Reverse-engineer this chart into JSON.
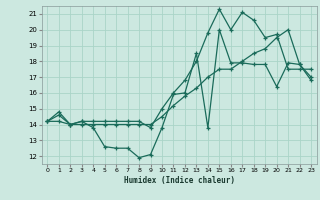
{
  "xlabel": "Humidex (Indice chaleur)",
  "bg_color": "#cce8e0",
  "grid_color": "#aad4c8",
  "line_color": "#1a6b5a",
  "xlim": [
    -0.5,
    23.5
  ],
  "ylim": [
    11.5,
    21.5
  ],
  "xticks": [
    0,
    1,
    2,
    3,
    4,
    5,
    6,
    7,
    8,
    9,
    10,
    11,
    12,
    13,
    14,
    15,
    16,
    17,
    18,
    19,
    20,
    21,
    22,
    23
  ],
  "yticks": [
    12,
    13,
    14,
    15,
    16,
    17,
    18,
    19,
    20,
    21
  ],
  "line1_x": [
    0,
    1,
    2,
    3,
    4,
    5,
    6,
    7,
    8,
    9,
    10,
    11,
    12,
    13,
    14,
    15,
    16,
    17,
    18,
    19,
    20,
    21,
    22,
    23
  ],
  "line1_y": [
    14.2,
    14.8,
    14.0,
    14.2,
    13.8,
    12.6,
    12.5,
    12.5,
    11.9,
    12.1,
    13.8,
    15.9,
    16.0,
    18.5,
    13.8,
    20.0,
    17.9,
    17.9,
    17.8,
    17.8,
    16.4,
    17.9,
    17.8,
    16.8
  ],
  "line2_x": [
    0,
    1,
    2,
    3,
    4,
    5,
    6,
    7,
    8,
    9,
    10,
    11,
    12,
    13,
    14,
    15,
    16,
    17,
    18,
    19,
    20,
    21,
    22,
    23
  ],
  "line2_y": [
    14.2,
    14.6,
    14.0,
    14.2,
    14.2,
    14.2,
    14.2,
    14.2,
    14.2,
    13.8,
    15.0,
    16.0,
    16.8,
    18.0,
    19.8,
    21.3,
    20.0,
    21.1,
    20.6,
    19.5,
    19.7,
    17.5,
    17.5,
    17.5
  ],
  "line3_x": [
    0,
    1,
    2,
    3,
    4,
    5,
    6,
    7,
    8,
    9,
    10,
    11,
    12,
    13,
    14,
    15,
    16,
    17,
    18,
    19,
    20,
    21,
    22,
    23
  ],
  "line3_y": [
    14.2,
    14.2,
    14.0,
    14.0,
    14.0,
    14.0,
    14.0,
    14.0,
    14.0,
    14.0,
    14.5,
    15.2,
    15.8,
    16.3,
    17.0,
    17.5,
    17.5,
    18.0,
    18.5,
    18.8,
    19.5,
    20.0,
    17.8,
    17.0
  ]
}
